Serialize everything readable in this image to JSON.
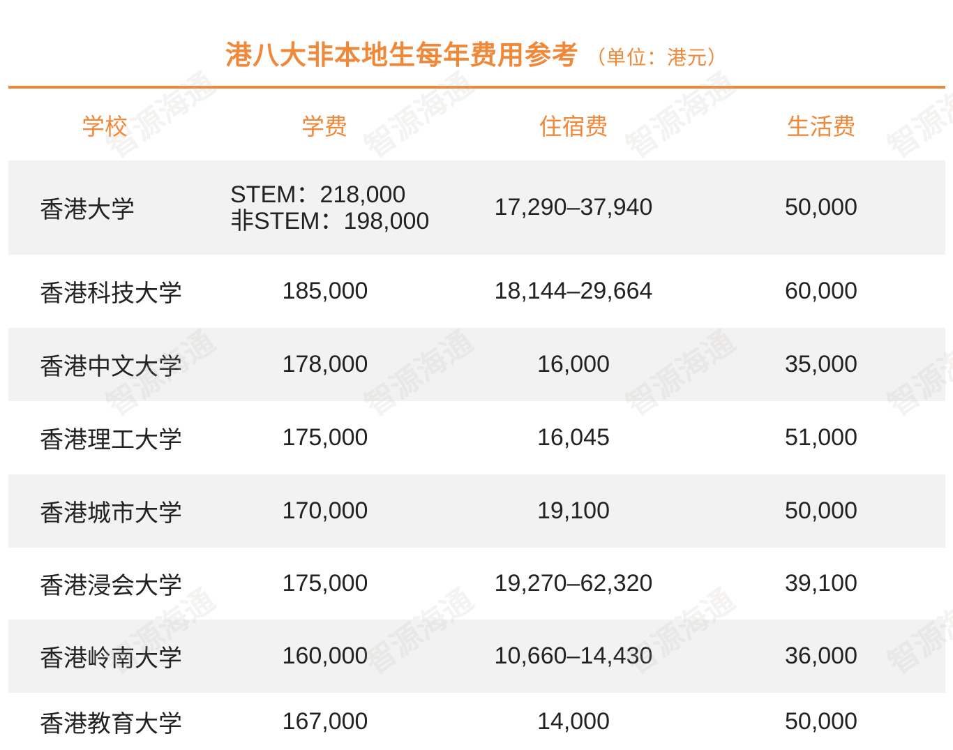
{
  "title": "港八大非本地生每年费用参考",
  "unit": "（单位：港元）",
  "watermark": "智源海通",
  "colors": {
    "accent": "#f0883a",
    "row_alt": "#f2f2f2",
    "text": "#222222"
  },
  "headers": [
    "学校",
    "学费",
    "住宿费",
    "生活费"
  ],
  "rows": [
    {
      "school": "香港大学",
      "tuition_lines": [
        "STEM：218,000",
        "非STEM：198,000"
      ],
      "housing": "17,290–37,940",
      "living": "50,000"
    },
    {
      "school": "香港科技大学",
      "tuition": "185,000",
      "housing": "18,144–29,664",
      "living": "60,000"
    },
    {
      "school": "香港中文大学",
      "tuition": "178,000",
      "housing": "16,000",
      "living": "35,000"
    },
    {
      "school": "香港理工大学",
      "tuition": "175,000",
      "housing": "16,045",
      "living": "51,000"
    },
    {
      "school": "香港城市大学",
      "tuition": "170,000",
      "housing": "19,100",
      "living": "50,000"
    },
    {
      "school": "香港浸会大学",
      "tuition": "175,000",
      "housing": "19,270–62,320",
      "living": "39,100"
    },
    {
      "school": "香港岭南大学",
      "tuition": "160,000",
      "housing": "10,660–14,430",
      "living": "36,000"
    },
    {
      "school": "香港教育大学",
      "tuition": "167,000",
      "housing": "14,000",
      "living": "50,000"
    }
  ]
}
